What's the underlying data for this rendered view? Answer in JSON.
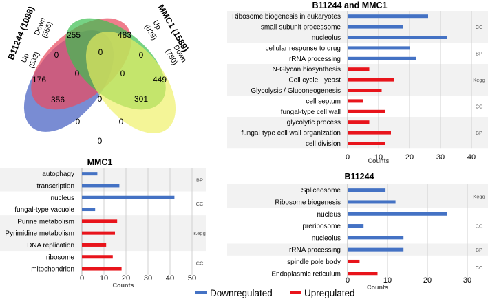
{
  "colors": {
    "down": "#4472C4",
    "up": "#E8141B",
    "band": "#F2F2F2",
    "grid": "#D0D0D0",
    "axis": "#B0B0B0"
  },
  "legend": {
    "down_label": "Downregulated",
    "up_label": "Upregulated"
  },
  "venn": {
    "set_b11244": "B11244 (1088)",
    "set_mmc1": "MMC1 (1589)",
    "b_up": "Up",
    "b_up_count": "(532)",
    "b_down": "Down",
    "b_down_count": "(556)",
    "m_up": "Up",
    "m_up_count": "(839)",
    "m_down": "Down",
    "m_down_count": "(750)",
    "regions": [
      "176",
      "255",
      "483",
      "449",
      "0",
      "0",
      "0",
      "0",
      "0",
      "356",
      "301",
      "0",
      "0",
      "0",
      "0"
    ]
  },
  "chart_data": [
    {
      "type": "bar",
      "id": "both",
      "title": "B11244 and MMC1",
      "xlabel": "Counts",
      "xlim": [
        0,
        40
      ],
      "ticks": [
        "0",
        "10",
        "20",
        "30",
        "40"
      ],
      "groups": [
        "CC",
        "BP",
        "Kegg",
        "CC",
        "BP"
      ],
      "categories": [
        "Ribosome biogenesis in eukaryotes",
        "small-subunit processome",
        "nucleolus",
        "cellular response to drug",
        "rRNA processing",
        "N-Glycan biosynthesis",
        "Cell cycle - yeast",
        "Glycolysis / Gluconeogenesis",
        "cell septum",
        "fungal-type cell wall",
        "glycolytic process",
        "fungal-type cell wall organization",
        "cell division"
      ],
      "values": [
        26,
        18,
        32,
        20,
        22,
        7,
        15,
        11,
        5,
        12,
        7,
        14,
        12
      ],
      "direction": [
        "down",
        "down",
        "down",
        "down",
        "down",
        "up",
        "up",
        "up",
        "up",
        "up",
        "up",
        "up",
        "up"
      ]
    },
    {
      "type": "bar",
      "id": "mmc1",
      "title": "MMC1",
      "xlabel": "Counts",
      "xlim": [
        0,
        50
      ],
      "ticks": [
        "0",
        "10",
        "20",
        "30",
        "40",
        "50"
      ],
      "groups": [
        "BP",
        "CC",
        "Kegg",
        "CC"
      ],
      "categories": [
        "autophagy",
        "transcription",
        "nucleus",
        "fungal-type vacuole",
        "Purine metabolism",
        "Pyrimidine metabolism",
        "DNA replication",
        "ribosome",
        "mitochondrion"
      ],
      "values": [
        7,
        17,
        42,
        6,
        16,
        15,
        11,
        14,
        18
      ],
      "direction": [
        "down",
        "down",
        "down",
        "down",
        "up",
        "up",
        "up",
        "up",
        "up"
      ]
    },
    {
      "type": "bar",
      "id": "b11244",
      "title": "B11244",
      "xlabel": "Counts",
      "xlim": [
        0,
        30
      ],
      "ticks": [
        "0",
        "10",
        "20",
        "30"
      ],
      "groups": [
        "Kegg",
        "CC",
        "BP",
        "CC"
      ],
      "categories": [
        "Spliceosome",
        "Ribosome biogenesis",
        "nucleus",
        "preribosome",
        "nucleolus",
        "rRNA processing",
        "spindle pole body",
        "Endoplasmic reticulum"
      ],
      "values": [
        9.5,
        12,
        25,
        4,
        14,
        14,
        3,
        7.5
      ],
      "direction": [
        "down",
        "down",
        "down",
        "down",
        "down",
        "down",
        "up",
        "up"
      ]
    }
  ]
}
